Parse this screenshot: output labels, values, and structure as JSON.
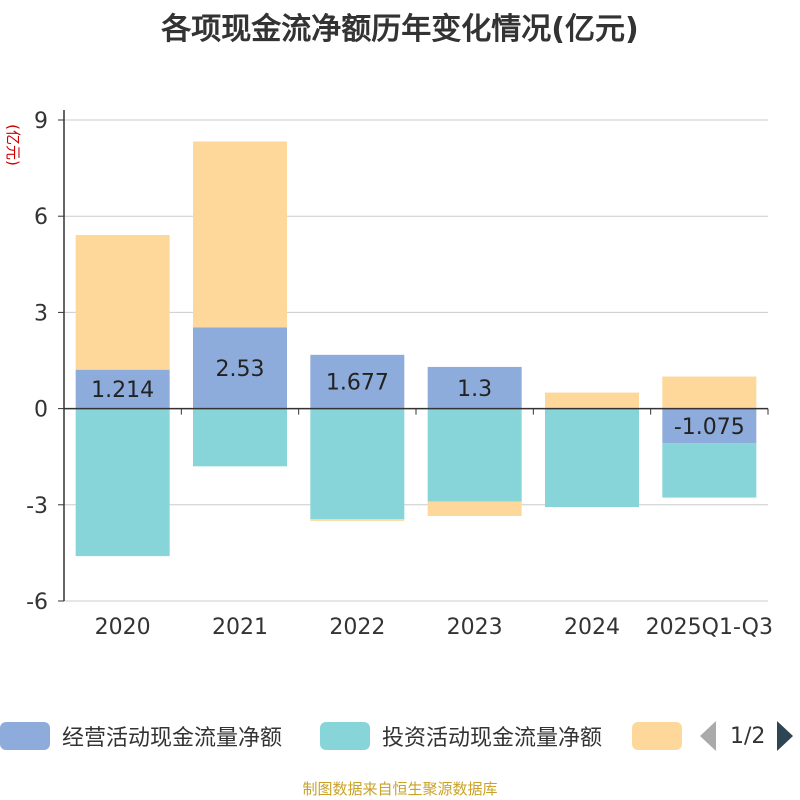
{
  "chart_data": {
    "type": "bar",
    "stacked": true,
    "title": "各项现金流净额历年变化情况(亿元)",
    "ylabel": "(亿元)",
    "ylim": [
      -6,
      9
    ],
    "yticks": [
      9,
      6,
      3,
      0,
      -3,
      -6
    ],
    "ytick_labels": [
      "9",
      "6",
      "3",
      "0",
      "-3",
      "-6"
    ],
    "categories": [
      "2020",
      "2021",
      "2022",
      "2023",
      "2024",
      "2025Q1-Q3"
    ],
    "series": [
      {
        "name": "经营活动现金流量净额",
        "color": "#8eacdb",
        "values": [
          1.214,
          2.53,
          1.677,
          1.3,
          -0.02,
          -1.075
        ],
        "labels": [
          "1.214",
          "2.53",
          "1.677",
          "1.3",
          "",
          "-1.075"
        ]
      },
      {
        "name": "投资活动现金流量净额",
        "color": "#87d5d8",
        "values": [
          -4.6,
          -1.8,
          -3.45,
          -2.9,
          -3.05,
          -1.7
        ],
        "labels": [
          "",
          "",
          "",
          "",
          "",
          ""
        ]
      },
      {
        "name": "",
        "color": "#fdd89a",
        "values": [
          4.2,
          5.8,
          -0.05,
          -0.45,
          0.5,
          1.0
        ],
        "labels": [
          "",
          "",
          "",
          "",
          "",
          ""
        ]
      }
    ],
    "legend_position": "bottom",
    "grid": true
  },
  "legend": {
    "items": [
      {
        "label": "经营活动现金流量净额",
        "color": "#8eacdb"
      },
      {
        "label": "投资活动现金流量净额",
        "color": "#87d5d8"
      },
      {
        "label": "",
        "color": "#fdd89a"
      }
    ],
    "page_indicator": "1/2"
  },
  "source": "制图数据来自恒生聚源数据库"
}
